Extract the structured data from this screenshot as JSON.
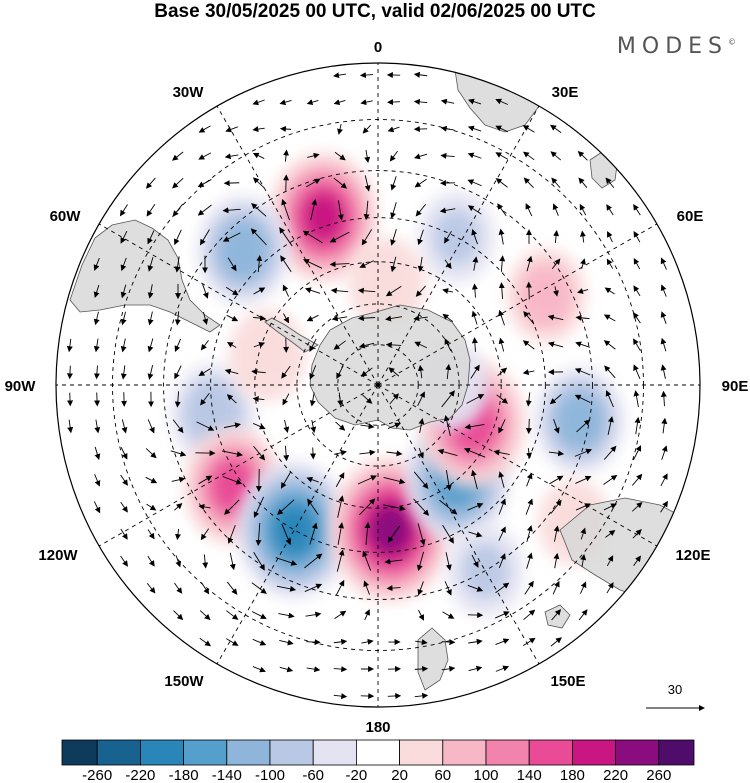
{
  "header": {
    "title": "Base 30/05/2025 00 UTC, valid 02/06/2025 00 UTC",
    "logo": "MODES",
    "logo_mark": "©"
  },
  "map": {
    "projection": "south-polar-stereographic",
    "longitude_labels": {
      "lon_0": "0",
      "lon_30e": "30E",
      "lon_60e": "60E",
      "lon_90e": "90E",
      "lon_120e": "120E",
      "lon_150e": "150E",
      "lon_180": "180",
      "lon_150w": "150W",
      "lon_120w": "120W",
      "lon_90w": "90W",
      "lon_60w": "60W",
      "lon_30w": "30W"
    },
    "vector_reference": "30",
    "land_color": "#dcdcdc",
    "anomalies": [
      {
        "lon": -18,
        "lat": -48,
        "value": 190
      },
      {
        "lon": -45,
        "lat": -45,
        "value": -120
      },
      {
        "lon": -100,
        "lat": -50,
        "value": -90
      },
      {
        "lon": -125,
        "lat": -48,
        "value": 150
      },
      {
        "lon": -150,
        "lat": -50,
        "value": -210
      },
      {
        "lon": 175,
        "lat": -55,
        "value": 240
      },
      {
        "lon": 140,
        "lat": -60,
        "value": -170
      },
      {
        "lon": 112,
        "lat": -65,
        "value": 180
      },
      {
        "lon": 100,
        "lat": -42,
        "value": -110
      },
      {
        "lon": 62,
        "lat": -45,
        "value": 70
      },
      {
        "lon": 28,
        "lat": -50,
        "value": -60
      },
      {
        "lon": 5,
        "lat": -65,
        "value": 60
      },
      {
        "lon": 90,
        "lat": -72,
        "value": -50
      },
      {
        "lon": -75,
        "lat": -62,
        "value": 60
      },
      {
        "lon": 125,
        "lat": -35,
        "value": 40
      },
      {
        "lon": 150,
        "lat": -40,
        "value": -60
      }
    ]
  },
  "colorbar": {
    "tick_labels": [
      "-260",
      "-220",
      "-180",
      "-140",
      "-100",
      "-60",
      "-20",
      "20",
      "60",
      "100",
      "140",
      "180",
      "220",
      "260"
    ],
    "colors": [
      "#0e3b5c",
      "#17628f",
      "#2a86b9",
      "#559fcc",
      "#8fb6da",
      "#b9c8e4",
      "#e3e3f2",
      "#ffffff",
      "#fadcdc",
      "#f8b7c6",
      "#f283ad",
      "#e94b96",
      "#c91682",
      "#8b0c7e",
      "#4f0c6b"
    ]
  }
}
